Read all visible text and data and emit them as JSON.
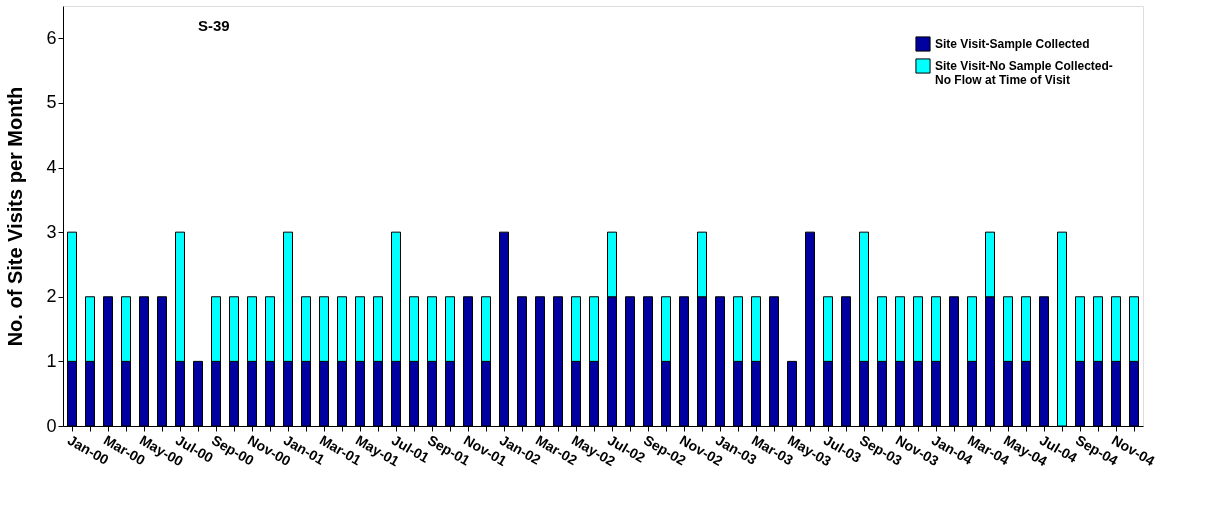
{
  "chart_data": {
    "type": "bar",
    "stacked": true,
    "ylabel": "No. of Site Visits per Month",
    "annotations": [
      "S-39"
    ],
    "categories": [
      "Jan-00",
      null,
      "Mar-00",
      null,
      "May-00",
      null,
      "Jul-00",
      null,
      "Sep-00",
      null,
      "Nov-00",
      null,
      "Jan-01",
      null,
      "Mar-01",
      null,
      "May-01",
      null,
      "Jul-01",
      null,
      "Sep-01",
      null,
      "Nov-01",
      null,
      "Jan-02",
      null,
      "Mar-02",
      null,
      "May-02",
      null,
      "Jul-02",
      null,
      "Sep-02",
      null,
      "Nov-02",
      null,
      "Jan-03",
      null,
      "Mar-03",
      null,
      "May-03",
      null,
      "Jul-03",
      null,
      "Sep-03",
      null,
      "Nov-03",
      null,
      "Jan-04",
      null,
      "Mar-04",
      null,
      "May-04",
      null,
      "Jul-04",
      null,
      "Sep-04",
      null,
      "Nov-04",
      null
    ],
    "series": [
      {
        "name": "Site Visit-Sample Collected",
        "color": "#0000a0",
        "values": [
          1,
          1,
          2,
          1,
          2,
          2,
          1,
          1,
          1,
          1,
          1,
          1,
          1,
          1,
          1,
          1,
          1,
          1,
          1,
          1,
          1,
          1,
          2,
          1,
          3,
          2,
          2,
          2,
          1,
          1,
          2,
          2,
          2,
          1,
          2,
          2,
          2,
          1,
          1,
          2,
          1,
          3,
          1,
          2,
          1,
          1,
          1,
          1,
          1,
          2,
          1,
          2,
          1,
          1,
          2,
          0,
          1,
          1,
          1,
          1
        ]
      },
      {
        "name": "Site Visit-No Sample Collected-\nNo Flow at Time of Visit",
        "color": "#00ffff",
        "values": [
          2,
          1,
          0,
          1,
          0,
          0,
          2,
          0,
          1,
          1,
          1,
          1,
          2,
          1,
          1,
          1,
          1,
          1,
          2,
          1,
          1,
          1,
          0,
          1,
          0,
          0,
          0,
          0,
          1,
          1,
          1,
          0,
          0,
          1,
          0,
          1,
          0,
          1,
          1,
          0,
          0,
          0,
          1,
          0,
          2,
          1,
          1,
          1,
          1,
          0,
          1,
          1,
          1,
          1,
          0,
          3,
          1,
          1,
          1,
          1
        ]
      }
    ],
    "ylim": [
      0,
      6.5
    ],
    "yticks": [
      0,
      1,
      2,
      3,
      4,
      5,
      6
    ],
    "grid": false,
    "legend": "top right"
  }
}
